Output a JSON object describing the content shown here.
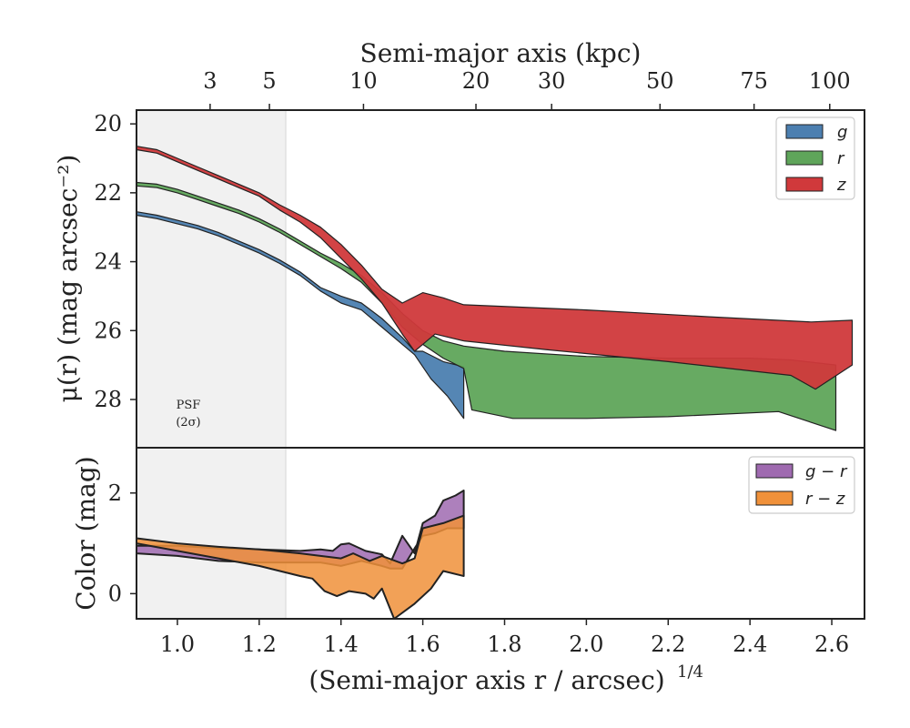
{
  "chart_data": [
    {
      "type": "area",
      "panel": "surface-brightness",
      "ylabel": "μ(r) (mag arcsec⁻²)",
      "ylim": [
        29.4,
        19.6
      ],
      "y_inverted": true,
      "xlim": [
        0.9,
        2.68
      ],
      "yticks": [
        "20",
        "22",
        "24",
        "26",
        "28"
      ],
      "grid": false,
      "legend_position": "top-right",
      "top_axis": {
        "label": "Semi-major axis (kpc)",
        "ticks": [
          {
            "label": "3",
            "x": 1.08
          },
          {
            "label": "5",
            "x": 1.225
          },
          {
            "label": "10",
            "x": 1.455
          },
          {
            "label": "20",
            "x": 1.73
          },
          {
            "label": "30",
            "x": 1.915
          },
          {
            "label": "50",
            "x": 2.18
          },
          {
            "label": "75",
            "x": 2.41
          },
          {
            "label": "100",
            "x": 2.595
          }
        ]
      },
      "psf_region": {
        "x_max": 1.265,
        "label_line1": "PSF",
        "label_line2": "(2σ)"
      },
      "series": [
        {
          "name": "g",
          "color": "#4c7fb0",
          "upper": [
            [
              0.9,
              22.55
            ],
            [
              0.95,
              22.65
            ],
            [
              1.0,
              22.8
            ],
            [
              1.05,
              22.95
            ],
            [
              1.1,
              23.15
            ],
            [
              1.15,
              23.4
            ],
            [
              1.2,
              23.65
            ],
            [
              1.25,
              23.95
            ],
            [
              1.3,
              24.3
            ],
            [
              1.35,
              24.75
            ],
            [
              1.4,
              25.0
            ],
            [
              1.45,
              25.2
            ],
            [
              1.5,
              25.65
            ],
            [
              1.55,
              26.2
            ],
            [
              1.58,
              26.6
            ],
            [
              1.6,
              26.6
            ],
            [
              1.65,
              26.9
            ],
            [
              1.7,
              27.05
            ]
          ],
          "lower": [
            [
              0.9,
              22.65
            ],
            [
              0.95,
              22.75
            ],
            [
              1.0,
              22.9
            ],
            [
              1.05,
              23.05
            ],
            [
              1.1,
              23.25
            ],
            [
              1.15,
              23.5
            ],
            [
              1.2,
              23.75
            ],
            [
              1.25,
              24.05
            ],
            [
              1.3,
              24.4
            ],
            [
              1.35,
              24.85
            ],
            [
              1.4,
              25.2
            ],
            [
              1.45,
              25.4
            ],
            [
              1.5,
              25.9
            ],
            [
              1.55,
              26.4
            ],
            [
              1.58,
              26.7
            ],
            [
              1.62,
              27.4
            ],
            [
              1.66,
              27.9
            ],
            [
              1.7,
              28.55
            ]
          ]
        },
        {
          "name": "r",
          "color": "#5fa55a",
          "upper": [
            [
              0.9,
              21.7
            ],
            [
              0.95,
              21.75
            ],
            [
              1.0,
              21.9
            ],
            [
              1.05,
              22.1
            ],
            [
              1.1,
              22.3
            ],
            [
              1.15,
              22.5
            ],
            [
              1.2,
              22.75
            ],
            [
              1.25,
              23.05
            ],
            [
              1.3,
              23.4
            ],
            [
              1.35,
              23.75
            ],
            [
              1.4,
              24.05
            ],
            [
              1.45,
              24.4
            ],
            [
              1.5,
              24.9
            ],
            [
              1.55,
              25.5
            ],
            [
              1.6,
              26.0
            ],
            [
              1.65,
              26.3
            ],
            [
              1.7,
              26.45
            ],
            [
              1.8,
              26.6
            ],
            [
              2.0,
              26.75
            ],
            [
              2.2,
              26.8
            ],
            [
              2.4,
              26.8
            ],
            [
              2.5,
              26.85
            ],
            [
              2.61,
              27.0
            ]
          ],
          "lower": [
            [
              0.9,
              21.8
            ],
            [
              0.95,
              21.85
            ],
            [
              1.0,
              22.0
            ],
            [
              1.05,
              22.2
            ],
            [
              1.1,
              22.4
            ],
            [
              1.15,
              22.6
            ],
            [
              1.2,
              22.85
            ],
            [
              1.25,
              23.15
            ],
            [
              1.3,
              23.5
            ],
            [
              1.35,
              23.85
            ],
            [
              1.4,
              24.2
            ],
            [
              1.45,
              24.6
            ],
            [
              1.5,
              25.2
            ],
            [
              1.55,
              25.9
            ],
            [
              1.6,
              26.4
            ],
            [
              1.65,
              26.8
            ],
            [
              1.7,
              27.1
            ],
            [
              1.72,
              28.3
            ],
            [
              1.82,
              28.55
            ],
            [
              2.0,
              28.55
            ],
            [
              2.2,
              28.5
            ],
            [
              2.47,
              28.35
            ],
            [
              2.61,
              28.9
            ]
          ]
        },
        {
          "name": "z",
          "color": "#d0393b",
          "upper": [
            [
              0.9,
              20.65
            ],
            [
              0.95,
              20.75
            ],
            [
              1.0,
              21.0
            ],
            [
              1.05,
              21.25
            ],
            [
              1.1,
              21.5
            ],
            [
              1.15,
              21.75
            ],
            [
              1.2,
              22.0
            ],
            [
              1.25,
              22.35
            ],
            [
              1.3,
              22.65
            ],
            [
              1.35,
              23.0
            ],
            [
              1.4,
              23.5
            ],
            [
              1.45,
              24.1
            ],
            [
              1.5,
              24.8
            ],
            [
              1.55,
              25.2
            ],
            [
              1.6,
              24.9
            ],
            [
              1.65,
              25.05
            ],
            [
              1.7,
              25.25
            ],
            [
              2.0,
              25.4
            ],
            [
              2.3,
              25.6
            ],
            [
              2.55,
              25.75
            ],
            [
              2.65,
              25.7
            ]
          ],
          "lower": [
            [
              0.9,
              20.75
            ],
            [
              0.95,
              20.85
            ],
            [
              1.0,
              21.1
            ],
            [
              1.05,
              21.35
            ],
            [
              1.1,
              21.6
            ],
            [
              1.15,
              21.85
            ],
            [
              1.2,
              22.1
            ],
            [
              1.25,
              22.5
            ],
            [
              1.3,
              22.85
            ],
            [
              1.35,
              23.3
            ],
            [
              1.4,
              23.9
            ],
            [
              1.45,
              24.5
            ],
            [
              1.5,
              25.2
            ],
            [
              1.55,
              26.1
            ],
            [
              1.58,
              26.6
            ],
            [
              1.63,
              26.1
            ],
            [
              1.7,
              26.3
            ],
            [
              1.9,
              26.55
            ],
            [
              2.2,
              26.9
            ],
            [
              2.5,
              27.3
            ],
            [
              2.56,
              27.7
            ],
            [
              2.65,
              27.0
            ]
          ]
        }
      ]
    },
    {
      "type": "area",
      "panel": "color",
      "ylabel": "Color (mag)",
      "xlabel": "(Semi-major axis r / arcsec)",
      "xlabel_superscript": "1/4",
      "xlim": [
        0.9,
        2.68
      ],
      "ylim": [
        -0.5,
        2.9
      ],
      "xticks": [
        "1.0",
        "1.2",
        "1.4",
        "1.6",
        "1.8",
        "2.0",
        "2.2",
        "2.4",
        "2.6"
      ],
      "yticks": [
        "0",
        "2"
      ],
      "grid": false,
      "legend_position": "top-right",
      "series": [
        {
          "name": "g − r",
          "color": "#9f6ab0",
          "upper": [
            [
              0.9,
              0.95
            ],
            [
              1.0,
              0.95
            ],
            [
              1.1,
              0.9
            ],
            [
              1.2,
              0.88
            ],
            [
              1.3,
              0.85
            ],
            [
              1.35,
              0.88
            ],
            [
              1.38,
              0.85
            ],
            [
              1.4,
              0.98
            ],
            [
              1.42,
              1.0
            ],
            [
              1.46,
              0.85
            ],
            [
              1.5,
              0.78
            ],
            [
              1.52,
              0.6
            ],
            [
              1.55,
              1.15
            ],
            [
              1.58,
              0.8
            ],
            [
              1.6,
              1.4
            ],
            [
              1.63,
              1.55
            ],
            [
              1.65,
              1.85
            ],
            [
              1.68,
              1.95
            ],
            [
              1.7,
              2.05
            ]
          ],
          "lower": [
            [
              0.9,
              0.8
            ],
            [
              1.0,
              0.75
            ],
            [
              1.1,
              0.65
            ],
            [
              1.2,
              0.62
            ],
            [
              1.3,
              0.62
            ],
            [
              1.35,
              0.62
            ],
            [
              1.4,
              0.55
            ],
            [
              1.45,
              0.65
            ],
            [
              1.5,
              0.55
            ],
            [
              1.52,
              0.5
            ],
            [
              1.55,
              0.5
            ],
            [
              1.58,
              0.9
            ],
            [
              1.6,
              1.15
            ],
            [
              1.63,
              1.2
            ],
            [
              1.66,
              1.3
            ],
            [
              1.7,
              1.3
            ]
          ]
        },
        {
          "name": "r − z",
          "color": "#f0913a",
          "upper": [
            [
              0.9,
              1.1
            ],
            [
              1.0,
              1.0
            ],
            [
              1.1,
              0.93
            ],
            [
              1.2,
              0.88
            ],
            [
              1.3,
              0.8
            ],
            [
              1.35,
              0.75
            ],
            [
              1.4,
              0.7
            ],
            [
              1.43,
              0.8
            ],
            [
              1.47,
              0.65
            ],
            [
              1.5,
              0.75
            ],
            [
              1.55,
              0.6
            ],
            [
              1.58,
              0.7
            ],
            [
              1.6,
              1.3
            ],
            [
              1.65,
              1.4
            ],
            [
              1.7,
              1.55
            ]
          ],
          "lower": [
            [
              0.9,
              1.0
            ],
            [
              1.0,
              0.85
            ],
            [
              1.1,
              0.7
            ],
            [
              1.2,
              0.55
            ],
            [
              1.3,
              0.35
            ],
            [
              1.33,
              0.3
            ],
            [
              1.36,
              0.05
            ],
            [
              1.39,
              -0.05
            ],
            [
              1.42,
              0.05
            ],
            [
              1.46,
              0.0
            ],
            [
              1.48,
              -0.1
            ],
            [
              1.5,
              0.1
            ],
            [
              1.53,
              -0.5
            ],
            [
              1.58,
              -0.2
            ],
            [
              1.62,
              0.1
            ],
            [
              1.65,
              0.45
            ],
            [
              1.7,
              0.35
            ]
          ]
        }
      ]
    }
  ]
}
